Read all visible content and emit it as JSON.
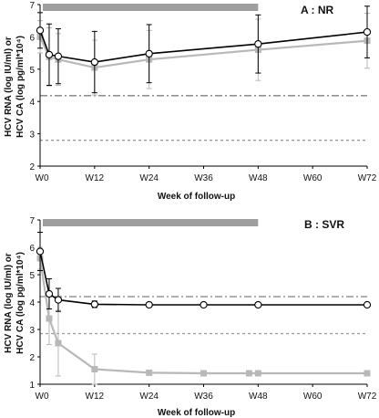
{
  "colors": {
    "rna": "#000000",
    "ca": "#b8b8b8",
    "bar": "#9e9e9e",
    "threshold_rna": "#808080",
    "threshold_ca": "#9a9a9a"
  },
  "chart_data": [
    {
      "type": "line",
      "title": "A : NR",
      "xlabel": "Week of follow-up",
      "ylabel": "HCV RNA (log IU/ml) or HCV CA (log pg/ml*10⁴)",
      "ylabel_lines": [
        "HCV RNA (log IU/ml) or",
        "HCV CA (log pg/ml*10⁴)"
      ],
      "xlim": [
        0,
        72
      ],
      "ylim": [
        2,
        7
      ],
      "xticks": [
        0,
        12,
        24,
        36,
        48,
        60,
        72
      ],
      "xtick_labels": [
        "W0",
        "W12",
        "W24",
        "W36",
        "W48",
        "W60",
        "W72"
      ],
      "yticks": [
        2,
        3,
        4,
        5,
        6,
        7
      ],
      "treatment_bar": [
        0,
        48
      ],
      "thresholds": [
        {
          "y": 4.18,
          "style": "dash-dot"
        },
        {
          "y": 2.8,
          "style": "dotted"
        }
      ],
      "series": [
        {
          "marker": "circle",
          "x": [
            0,
            2,
            4,
            12,
            24,
            48,
            72
          ],
          "y": [
            6.2,
            5.45,
            5.4,
            5.22,
            5.48,
            5.78,
            6.15
          ],
          "err": [
            0.55,
            0.95,
            0.85,
            0.95,
            0.9,
            0.9,
            0.8
          ]
        },
        {
          "marker": "square",
          "x": [
            0,
            2,
            4,
            12,
            24,
            48,
            72
          ],
          "y": [
            6.0,
            5.38,
            5.3,
            5.05,
            5.3,
            5.6,
            5.88
          ],
          "err": [
            0.5,
            0.9,
            0.8,
            0.85,
            0.9,
            0.95,
            0.85
          ]
        }
      ]
    },
    {
      "type": "line",
      "title": "B : SVR",
      "xlabel": "Week of follow-up",
      "ylabel": "HCV RNA (log IU/ml) or HCV CA (log pg/ml*10⁴)",
      "ylabel_lines": [
        "HCV RNA (log IU/ml) or",
        "HCV CA (log pg/ml*10⁴)"
      ],
      "xlim": [
        0,
        72
      ],
      "ylim": [
        1,
        7
      ],
      "xticks": [
        0,
        12,
        24,
        36,
        48,
        60,
        72
      ],
      "xtick_labels": [
        "W0",
        "W12",
        "W24",
        "W36",
        "W48",
        "W60",
        "W72"
      ],
      "yticks": [
        1,
        2,
        3,
        4,
        5,
        6,
        7
      ],
      "treatment_bar": [
        0,
        48
      ],
      "thresholds": [
        {
          "y": 4.2,
          "style": "dash-dot"
        },
        {
          "y": 2.85,
          "style": "dotted"
        }
      ],
      "series": [
        {
          "marker": "circle",
          "x": [
            0,
            2,
            4,
            12,
            24,
            36,
            48,
            72
          ],
          "y": [
            5.85,
            4.3,
            4.08,
            3.92,
            3.9,
            3.9,
            3.9,
            3.9
          ],
          "err": [
            0.7,
            0.55,
            0.42,
            0.12,
            0.08,
            0.05,
            0.05,
            0.05
          ]
        },
        {
          "marker": "square",
          "x": [
            0,
            2,
            4,
            12,
            24,
            36,
            46,
            48,
            72
          ],
          "y": [
            5.6,
            3.4,
            2.5,
            1.55,
            1.42,
            1.4,
            1.4,
            1.4,
            1.4
          ],
          "err": [
            0.4,
            0.95,
            1.2,
            0.55,
            0.02,
            0.02,
            0.02,
            0.02,
            0.02
          ]
        }
      ]
    }
  ]
}
